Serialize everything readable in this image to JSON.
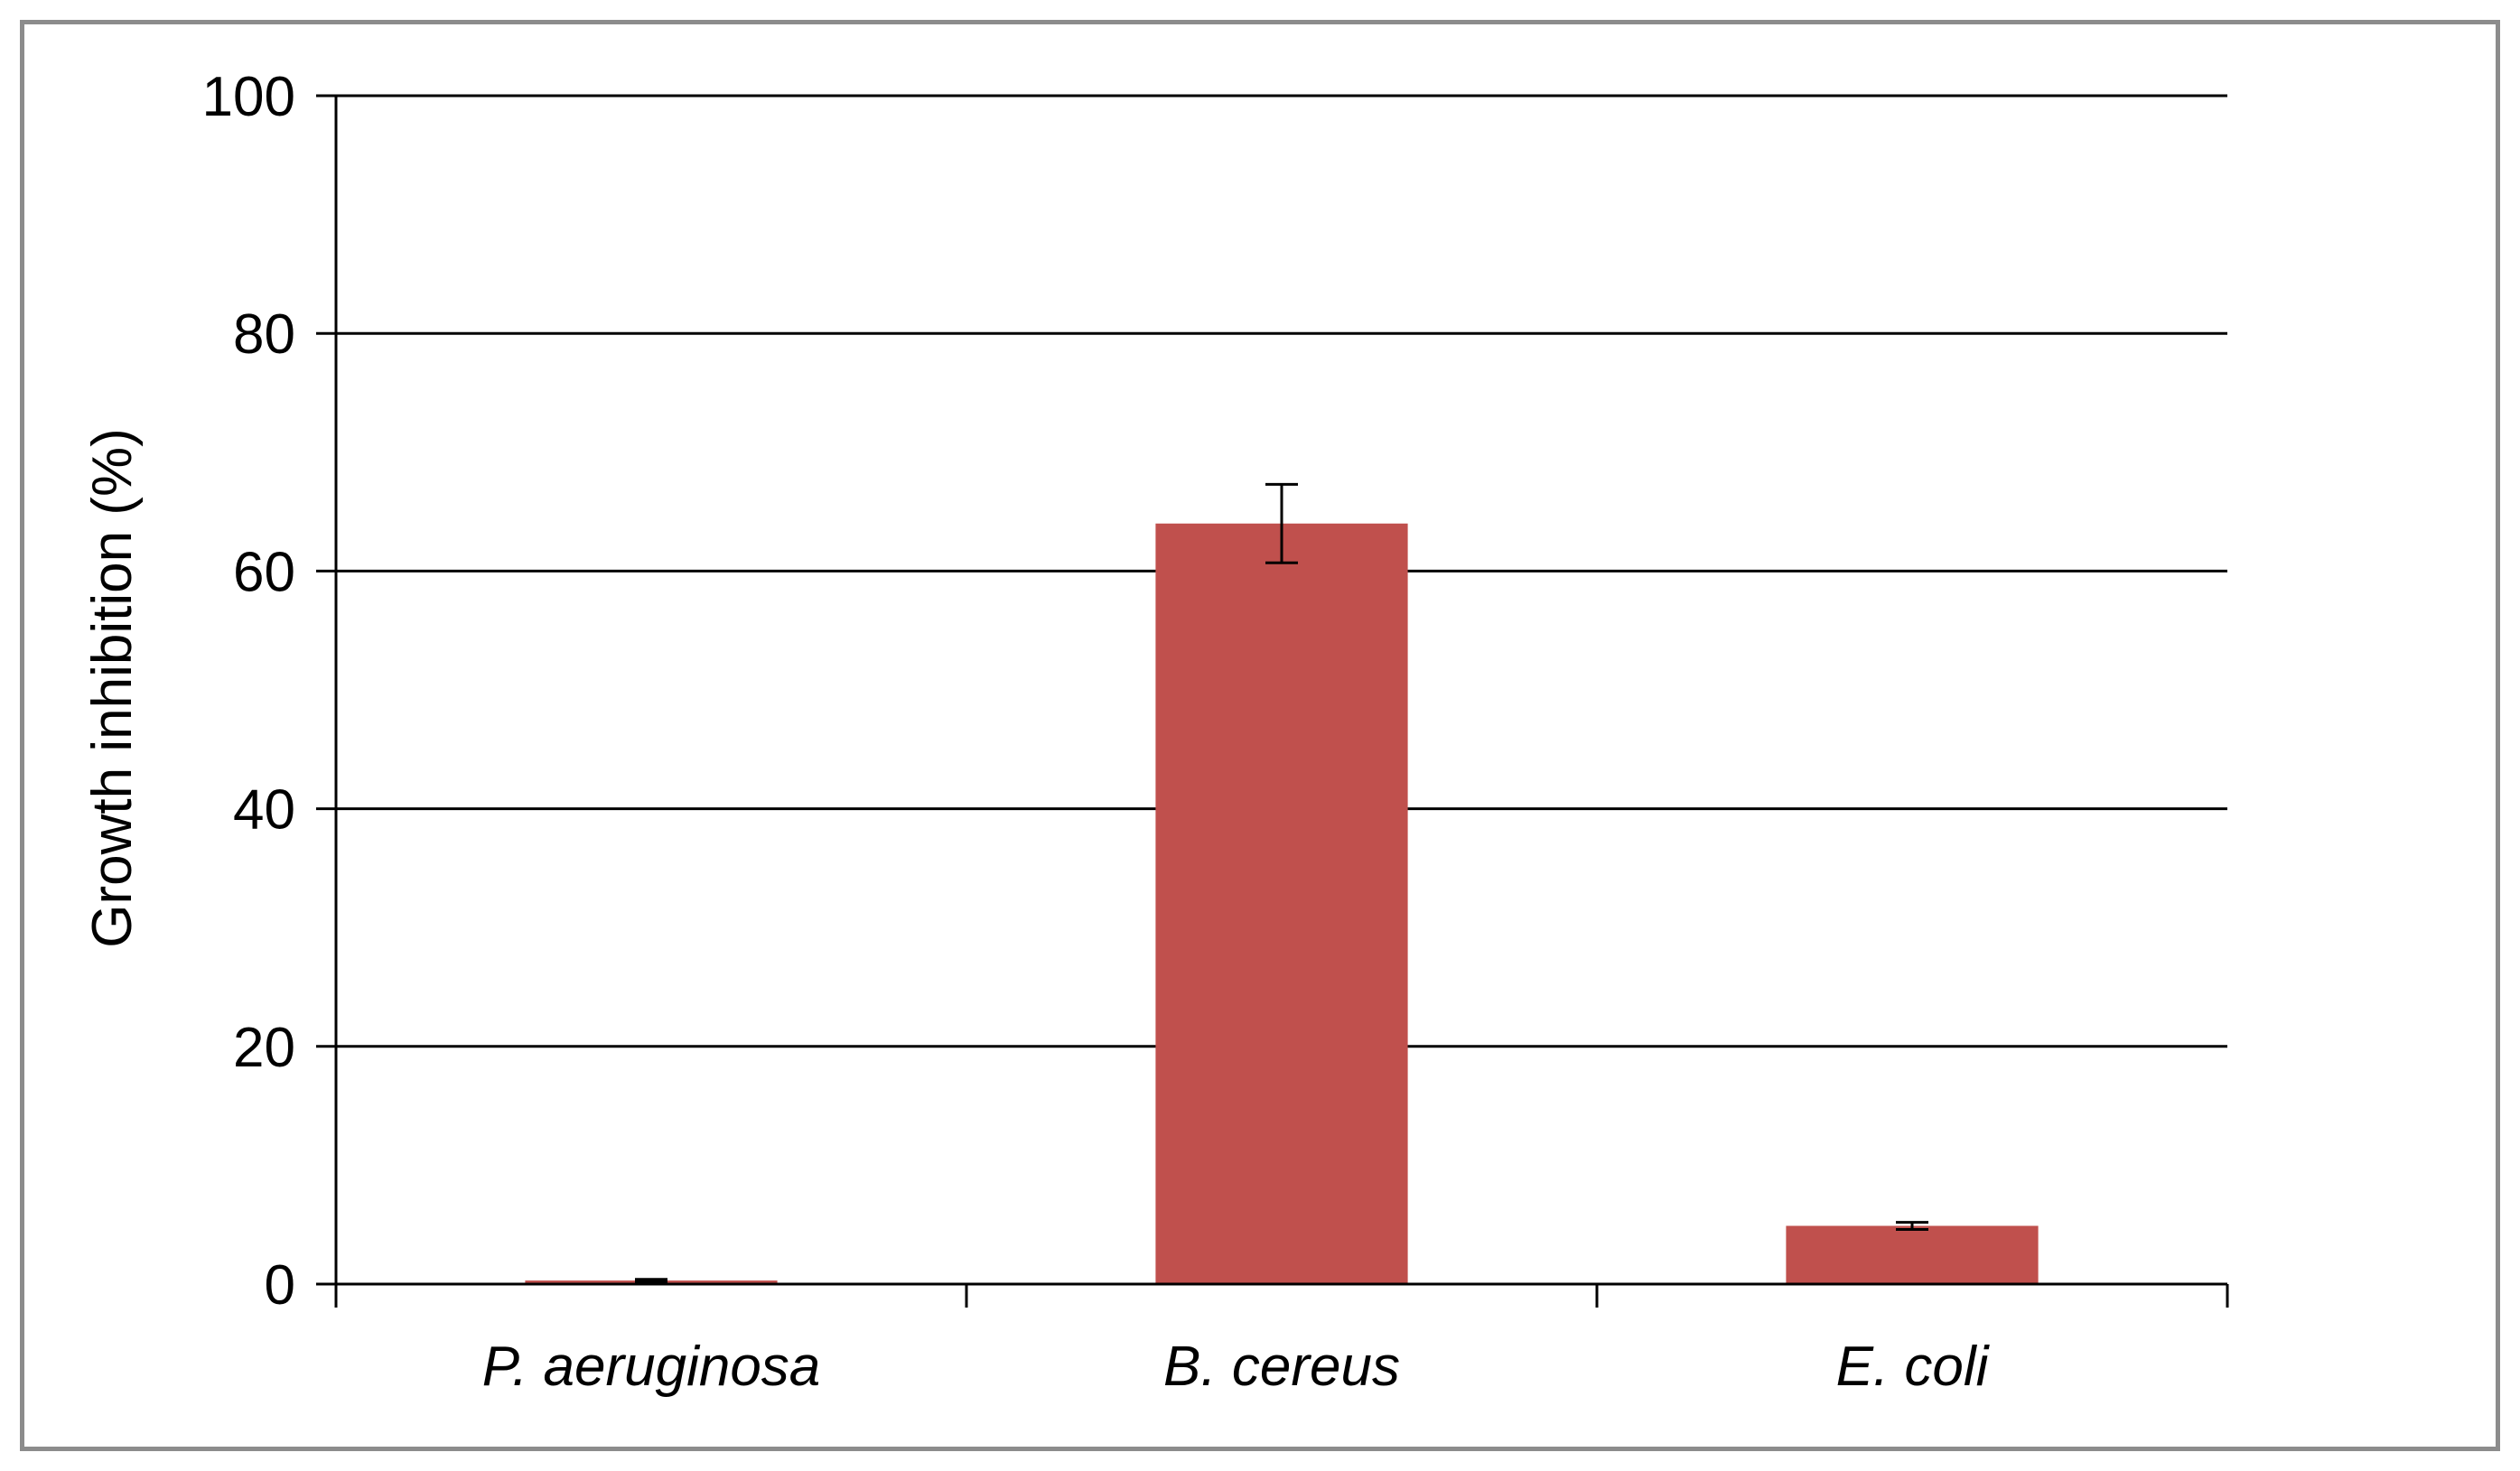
{
  "chart_data": {
    "type": "bar",
    "title": "",
    "xlabel": "",
    "ylabel": "Growth inhibition (%)",
    "categories": [
      "P. aeruginosa",
      "B. cereus",
      "E. coli"
    ],
    "values": [
      0.3,
      64.0,
      4.9
    ],
    "error": [
      0.1,
      3.3,
      0.3
    ],
    "ylim": [
      0,
      100
    ],
    "yticks": [
      0,
      20,
      40,
      60,
      80,
      100
    ],
    "grid": true,
    "legend": "none",
    "colors": {
      "bar": "#c0504d",
      "gridline": "#000000",
      "axis": "#000000",
      "frame": "#8c8c8c"
    }
  }
}
